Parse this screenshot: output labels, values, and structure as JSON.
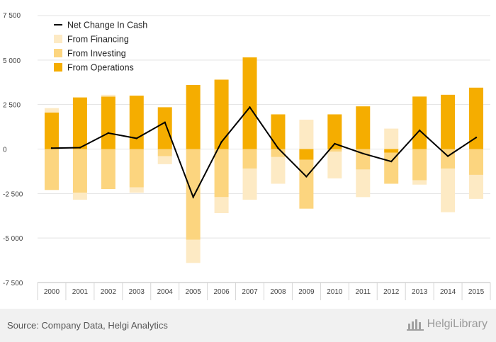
{
  "chart_data": {
    "type": "bar",
    "categories": [
      "2000",
      "2001",
      "2002",
      "2003",
      "2004",
      "2005",
      "2006",
      "2007",
      "2008",
      "2009",
      "2010",
      "2011",
      "2012",
      "2013",
      "2014",
      "2015"
    ],
    "series": [
      {
        "name": "From Operations",
        "type": "bar",
        "color": "#f5ad00",
        "values": [
          2050,
          2900,
          2950,
          3000,
          2350,
          3600,
          3900,
          5150,
          1950,
          -600,
          1950,
          2400,
          -200,
          2950,
          3050,
          3450
        ]
      },
      {
        "name": "From Investing",
        "type": "bar",
        "color": "#fcd57f",
        "values": [
          -2300,
          -2450,
          -2250,
          -2150,
          -400,
          -5100,
          -2700,
          -1100,
          -450,
          0,
          -150,
          -1150,
          -1750,
          -1750,
          -1100,
          -1450
        ]
      },
      {
        "name": "From Financing",
        "type": "bar",
        "color": "#fdeac4",
        "values": [
          250,
          -400,
          100,
          -300,
          -450,
          -1300,
          -900,
          -1750,
          -1500,
          1650,
          -1500,
          -1550,
          1150,
          -250,
          -2450,
          -1350
        ]
      },
      {
        "name": "Net Change In Cash",
        "type": "line",
        "color": "#000000",
        "values": [
          50,
          80,
          900,
          600,
          1500,
          -2700,
          400,
          2350,
          50,
          -1550,
          300,
          -250,
          -700,
          1050,
          -400,
          650
        ]
      }
    ],
    "extra_negative": [
      0,
      0,
      0,
      0,
      0,
      0,
      0,
      0,
      0,
      -2750,
      0,
      0,
      0,
      0,
      0,
      0
    ],
    "yticks": [
      -7500,
      -5000,
      -2500,
      0,
      2500,
      5000,
      7500
    ],
    "ytick_labels": [
      "-7 500",
      "-5 000",
      "-2 500",
      "0",
      "2 500",
      "5 000",
      "7 500"
    ],
    "ylim": [
      -7500,
      7500
    ],
    "grid": true,
    "legend_position": "top-left"
  },
  "legend": [
    {
      "label": "Net Change In Cash",
      "kind": "line",
      "color": "#000000"
    },
    {
      "label": "From Financing",
      "kind": "box",
      "color": "#fdeac4"
    },
    {
      "label": "From Investing",
      "kind": "box",
      "color": "#fcd57f"
    },
    {
      "label": "From Operations",
      "kind": "box",
      "color": "#f5ad00"
    }
  ],
  "footer": {
    "source": "Source: Company Data, Helgi Analytics",
    "brand": "HelgiLibrary"
  }
}
